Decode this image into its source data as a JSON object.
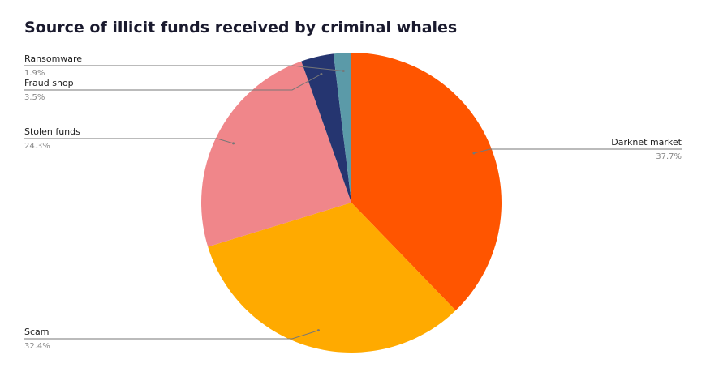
{
  "chart_data": {
    "type": "pie",
    "title": "Source of illicit funds received by criminal whales",
    "categories": [
      "Darknet market",
      "Scam",
      "Stolen funds",
      "Fraud shop",
      "Ransomware"
    ],
    "values": [
      37.7,
      32.4,
      24.3,
      3.5,
      1.9
    ],
    "value_labels": [
      "37.7%",
      "32.4%",
      "24.3%",
      "3.5%",
      "1.9%"
    ],
    "colors": [
      "#ff5500",
      "#ffaa00",
      "#f0868a",
      "#253570",
      "#5b9aa8"
    ]
  }
}
